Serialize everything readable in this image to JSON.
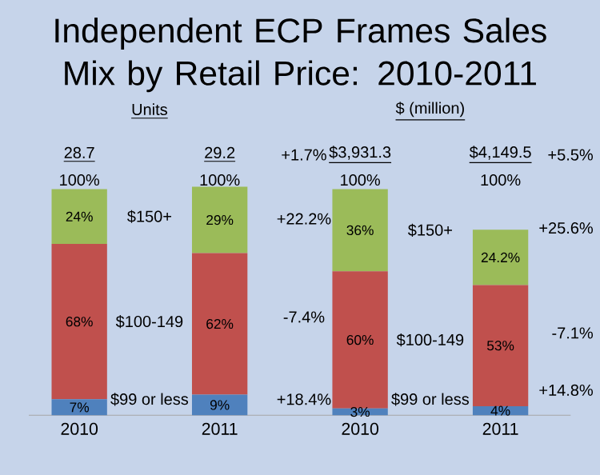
{
  "chart_data": {
    "type": "bar",
    "stacked": true,
    "title": "Independent ECP Frames Sales Mix by Retail Price: 2010-2011",
    "categories": [
      "2010",
      "2011",
      "2010",
      "2011"
    ],
    "series": [
      {
        "name": "$99 or less",
        "color": "#4f81bd",
        "values": [
          7,
          9,
          3,
          4
        ],
        "value_labels": [
          "7%",
          "9%",
          "3%",
          "4%"
        ]
      },
      {
        "name": "$100-149",
        "color": "#c0504d",
        "values": [
          68,
          62,
          60,
          53
        ],
        "value_labels": [
          "68%",
          "62%",
          "60%",
          "53%"
        ]
      },
      {
        "name": "$150+",
        "color": "#9bbb59",
        "values": [
          24,
          29,
          36,
          24.2
        ],
        "value_labels": [
          "24%",
          "29%",
          "36%",
          "24.2%"
        ]
      }
    ],
    "annotations": [
      "100%",
      "100%",
      "100%",
      "100%",
      "Units",
      "$ (million)",
      "28.7",
      "29.2",
      "+1.7%",
      "$3,931.3",
      "$4,149.5",
      "+5.5%",
      "+22.2%",
      "-7.4%",
      "+18.4%",
      "+25.6%",
      "-7.1%",
      "+14.8%"
    ]
  }
}
